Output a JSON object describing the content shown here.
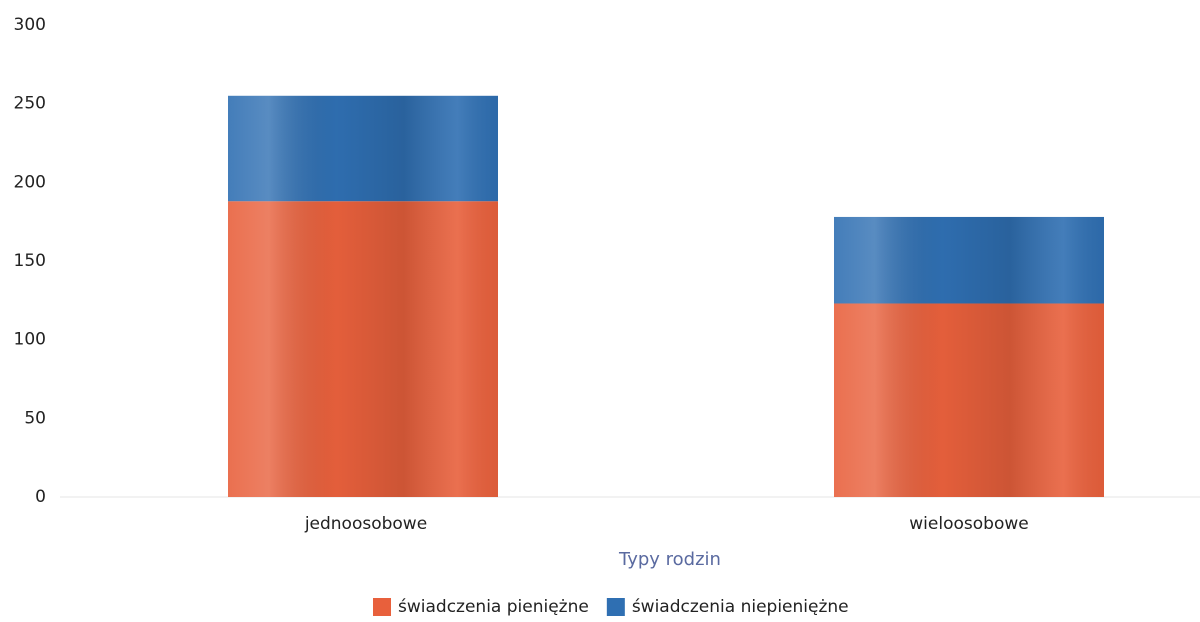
{
  "chart_data": {
    "type": "stacked_bar",
    "categories": [
      "jednoosobowe",
      "wieloosobowe"
    ],
    "series": [
      {
        "name": "świadczenia pieniężne",
        "color": "#e8603c",
        "values": [
          188,
          123
        ]
      },
      {
        "name": "świadczenia niepieniężne",
        "color": "#2f6fb2",
        "values": [
          67,
          55
        ]
      }
    ],
    "x_label": "Typy rodzin",
    "ylim": [
      0,
      300
    ],
    "yticks": [
      0,
      50,
      100,
      150,
      200,
      250,
      300
    ],
    "grid": false
  }
}
